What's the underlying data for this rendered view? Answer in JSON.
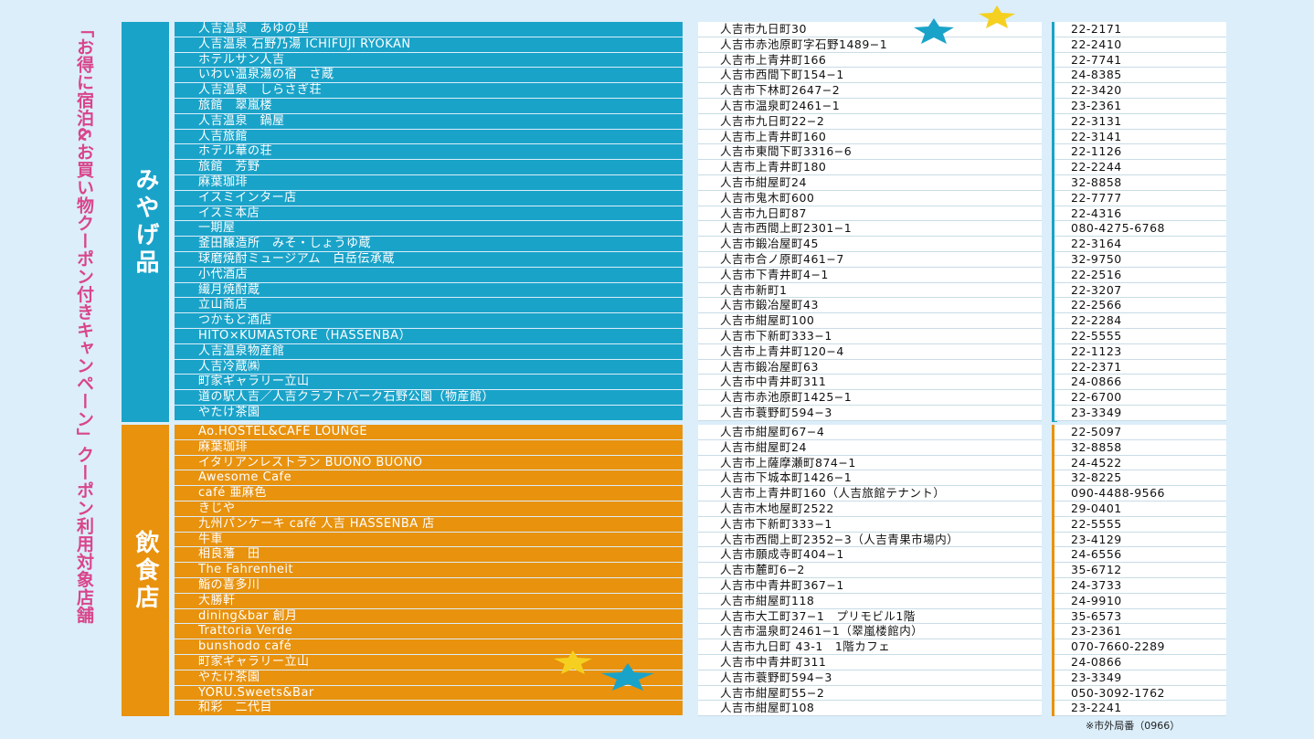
{
  "title": "「お得に宿泊&お買い物クーポン付きキャンペーン」クーポン利用対象店舗",
  "sections": [
    {
      "category": "みやげ品",
      "stores": [
        {
          "name": "人吉温泉　あゆの里",
          "address": "人吉市九日町30",
          "tel": "22-2171"
        },
        {
          "name": "人吉温泉 石野乃湯 ICHIFUJI RYOKAN",
          "address": "人吉市赤池原町字石野1489−1",
          "tel": "22-2410"
        },
        {
          "name": "ホテルサン人吉",
          "address": "人吉市上青井町166",
          "tel": "22-7741"
        },
        {
          "name": "いわい温泉湯の宿　さ蔵",
          "address": "人吉市西間下町154−1",
          "tel": "24-8385"
        },
        {
          "name": "人吉温泉　しらさぎ荘",
          "address": "人吉市下林町2647−2",
          "tel": "22-3420"
        },
        {
          "name": "旅館　翠嵐楼",
          "address": "人吉市温泉町2461−1",
          "tel": "23-2361"
        },
        {
          "name": "人吉温泉　鍋屋",
          "address": "人吉市九日町22−2",
          "tel": "22-3131"
        },
        {
          "name": "人吉旅館",
          "address": "人吉市上青井町160",
          "tel": "22-3141"
        },
        {
          "name": "ホテル華の荘",
          "address": "人吉市東間下町3316−6",
          "tel": "22-1126"
        },
        {
          "name": "旅館　芳野",
          "address": "人吉市上青井町180",
          "tel": "22-2244"
        },
        {
          "name": "麻葉珈琲",
          "address": "人吉市紺屋町24",
          "tel": "32-8858"
        },
        {
          "name": "イスミインター店",
          "address": "人吉市鬼木町600",
          "tel": "22-7777"
        },
        {
          "name": "イスミ本店",
          "address": "人吉市九日町87",
          "tel": "22-4316"
        },
        {
          "name": "一期屋",
          "address": "人吉市西間上町2301−1",
          "tel": "080-4275-6768"
        },
        {
          "name": "釜田醸造所　みそ・しょうゆ蔵",
          "address": "人吉市鍛冶屋町45",
          "tel": "22-3164"
        },
        {
          "name": "球磨焼酎ミュージアム　白岳伝承蔵",
          "address": "人吉市合ノ原町461−7",
          "tel": "32-9750"
        },
        {
          "name": "小代酒店",
          "address": "人吉市下青井町4−1",
          "tel": "22-2516"
        },
        {
          "name": "繊月焼酎蔵",
          "address": "人吉市新町1",
          "tel": "22-3207"
        },
        {
          "name": "立山商店",
          "address": "人吉市鍛冶屋町43",
          "tel": "22-2566"
        },
        {
          "name": "つかもと酒店",
          "address": "人吉市紺屋町100",
          "tel": "22-2284"
        },
        {
          "name": "HITO×KUMASTORE（HASSENBA）",
          "address": "人吉市下新町333−1",
          "tel": "22-5555"
        },
        {
          "name": "人吉温泉物産館",
          "address": "人吉市上青井町120−4",
          "tel": "22-1123"
        },
        {
          "name": "人吉冷蔵㈱",
          "address": "人吉市鍛冶屋町63",
          "tel": "22-2371"
        },
        {
          "name": "町家ギャラリー立山",
          "address": "人吉市中青井町311",
          "tel": "24-0866"
        },
        {
          "name": "道の駅人吉／人吉クラフトパーク石野公園（物産館）",
          "address": "人吉市赤池原町1425−1",
          "tel": "22-6700"
        },
        {
          "name": "やたけ茶園",
          "address": "人吉市蓑野町594−3",
          "tel": "23-3349"
        }
      ]
    },
    {
      "category": "飲食店",
      "stores": [
        {
          "name": "Ao.HOSTEL&CAFÉ LOUNGE",
          "address": "人吉市紺屋町67−4",
          "tel": "22-5097"
        },
        {
          "name": "麻葉珈琲",
          "address": "人吉市紺屋町24",
          "tel": "32-8858"
        },
        {
          "name": "イタリアンレストラン BUONO BUONO",
          "address": "人吉市上薩摩瀬町874−1",
          "tel": "24-4522"
        },
        {
          "name": "Awesome Cafe",
          "address": "人吉市下城本町1426−1",
          "tel": "32-8225"
        },
        {
          "name": "café 亜麻色",
          "address": "人吉市上青井町160（人吉旅館テナント）",
          "tel": "090-4488-9566"
        },
        {
          "name": "きじや",
          "address": "人吉市木地屋町2522",
          "tel": "29-0401"
        },
        {
          "name": "九州パンケーキ café 人吉 HASSENBA 店",
          "address": "人吉市下新町333−1",
          "tel": "22-5555"
        },
        {
          "name": "牛車",
          "address": "人吉市西間上町2352−3（人吉青果市場内）",
          "tel": "23-4129"
        },
        {
          "name": "相良藩　田",
          "address": "人吉市願成寺町404−1",
          "tel": "24-6556"
        },
        {
          "name": "The Fahrenheit",
          "address": "人吉市麓町6−2",
          "tel": "35-6712"
        },
        {
          "name": "鮨の喜多川",
          "address": "人吉市中青井町367−1",
          "tel": "24-3733"
        },
        {
          "name": "大勝軒",
          "address": "人吉市紺屋町118",
          "tel": "24-9910"
        },
        {
          "name": "dining&bar 創月",
          "address": "人吉市大工町37−1　プリモビル1階",
          "tel": "35-6573"
        },
        {
          "name": "Trattoria Verde",
          "address": "人吉市温泉町2461−1（翠嵐楼館内）",
          "tel": "23-2361"
        },
        {
          "name": "bunshodo café",
          "address": "人吉市九日町 43-1　1階カフェ",
          "tel": "070-7660-2289"
        },
        {
          "name": "町家ギャラリー立山",
          "address": "人吉市中青井町311",
          "tel": "24-0866"
        },
        {
          "name": "やたけ茶園",
          "address": "人吉市蓑野町594−3",
          "tel": "23-3349"
        },
        {
          "name": "YORU.Sweets&Bar",
          "address": "人吉市紺屋町55−2",
          "tel": "050-3092-1762"
        },
        {
          "name": "和彩　二代目",
          "address": "人吉市紺屋町108",
          "tel": "23-2241"
        }
      ]
    }
  ],
  "note": "※市外局番（0966）",
  "colors": {
    "souvenir": "#1aa3c9",
    "restaurant": "#e8920e",
    "title": "#d9458a",
    "star_yellow": "#f5d020",
    "star_blue": "#1aa3c9"
  }
}
